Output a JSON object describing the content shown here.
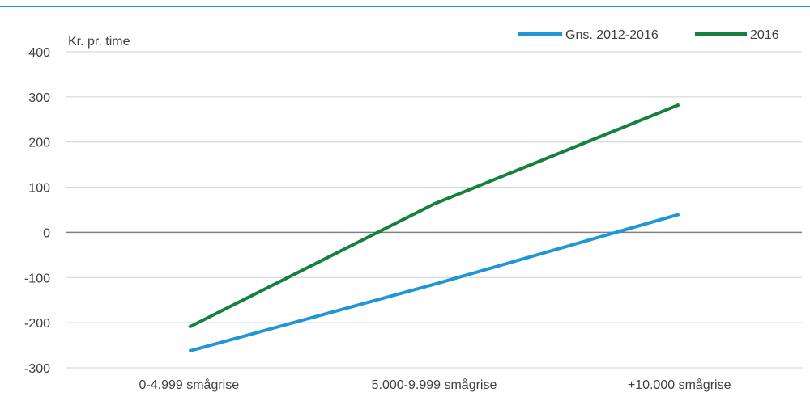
{
  "chart_data": {
    "type": "line",
    "title": "",
    "xlabel": "",
    "ylabel": "Kr. pr. time",
    "categories": [
      "0-4.999 smågrise",
      "5.000-9.999 smågrise",
      "+10.000 smågrise"
    ],
    "series": [
      {
        "name": "Gns. 2012-2016",
        "values": [
          -263,
          -115,
          40
        ],
        "color": "#1f96d6"
      },
      {
        "name": "2016",
        "values": [
          -210,
          63,
          283
        ],
        "color": "#17803e"
      }
    ],
    "ylim": [
      -300,
      400
    ],
    "yticks": [
      400,
      300,
      200,
      100,
      0,
      -100,
      -200,
      -300
    ],
    "grid": true,
    "legend_position": "top-right",
    "colors": {
      "top_rule": "#1f96d6",
      "grid": "#d0d0d0",
      "zero_line": "#7f7f7f",
      "text": "#404040"
    }
  }
}
